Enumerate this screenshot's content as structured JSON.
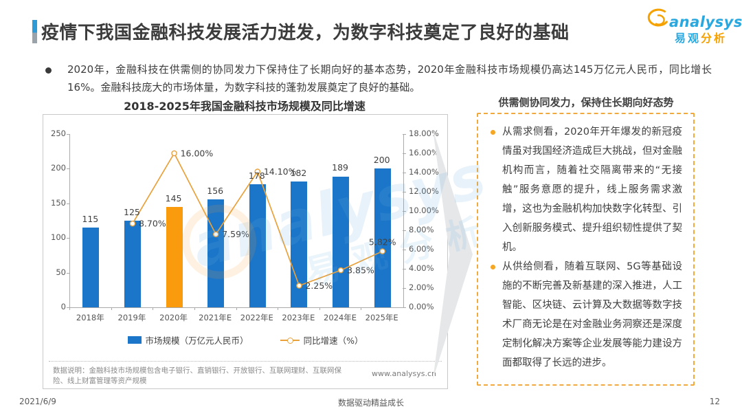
{
  "header": {
    "title": "疫情下我国金融科技发展活力迸发，为数字科技奠定了良好的基础",
    "logo": {
      "brand": "analysys",
      "brand_cn_blue": "易观",
      "brand_cn_orange": "分析"
    }
  },
  "intro": {
    "bullet": "2020年，金融科技在供需侧的协同发力下保持住了长期向好的基本态势，2020年金融科技市场规模仍高达145万亿元人民币，同比增长16%。金融科技庞大的市场体量，为数字科技的蓬勃发展奠定了良好的基础。"
  },
  "chart": {
    "title": "2018-2025年我国金融科技市场规模及同比增速",
    "legend_bar": "市场规模（万亿元人民币）",
    "legend_line": "同比增速（%）",
    "note": "数据说明：金融科技市场规模包含电子银行、直销银行、开放银行、互联网理财、互联网保险、线上财富管理等资产规模",
    "website": "www.analysys.cn"
  },
  "chart_data": {
    "type": "bar",
    "title": "2018-2025年我国金融科技市场规模及同比增速",
    "categories": [
      "2018年",
      "2019年",
      "2020年",
      "2021年E",
      "2022年E",
      "2023年E",
      "2024年E",
      "2025年E"
    ],
    "series": [
      {
        "name": "市场规模（万亿元人民币）",
        "type": "bar",
        "values": [
          115,
          125,
          145,
          156,
          178,
          182,
          189,
          200
        ]
      },
      {
        "name": "同比增速（%）",
        "type": "line",
        "values": [
          null,
          8.7,
          16.0,
          7.59,
          14.1,
          2.25,
          3.85,
          5.82
        ],
        "labels": [
          "",
          "8.70%",
          "16.00%",
          "7.59%",
          "14.10%",
          "2.25%",
          "3.85%",
          "5.82%"
        ]
      }
    ],
    "left_axis": {
      "min": 0,
      "max": 250,
      "step": 50
    },
    "right_axis": {
      "min": 0,
      "max": 18,
      "step": 2,
      "format": "percent"
    },
    "highlight_index": 2,
    "bar_color": "#1b75c8",
    "highlight_color": "#f99b0d",
    "line_color": "#e9a13b",
    "legend_position": "bottom",
    "grid": false
  },
  "side_panel": {
    "title": "供需侧协同发力，保持住长期向好态势",
    "bullets": [
      "从需求侧看，2020年开年爆发的新冠疫情虽对我国经济造成巨大挑战，但对金融机构而言，随着社交隔离带来的“无接触”服务意愿的提升，线上服务需求激增，这也为金融机构加快数字化转型、引入创新服务模式、提升组织韧性提供了契机。",
      "从供给侧看，随着互联网、5G等基础设施的不断完善及新基建的深入推进，人工智能、区块链、云计算及大数据等数字技术厂商无论是在对金融业务洞察还是深度定制化解决方案等企业发展等能力建设方面都取得了长远的进步。"
    ]
  },
  "footer": {
    "date": "2021/6/9",
    "slogan": "数据驱动精益成长",
    "page": "12"
  }
}
